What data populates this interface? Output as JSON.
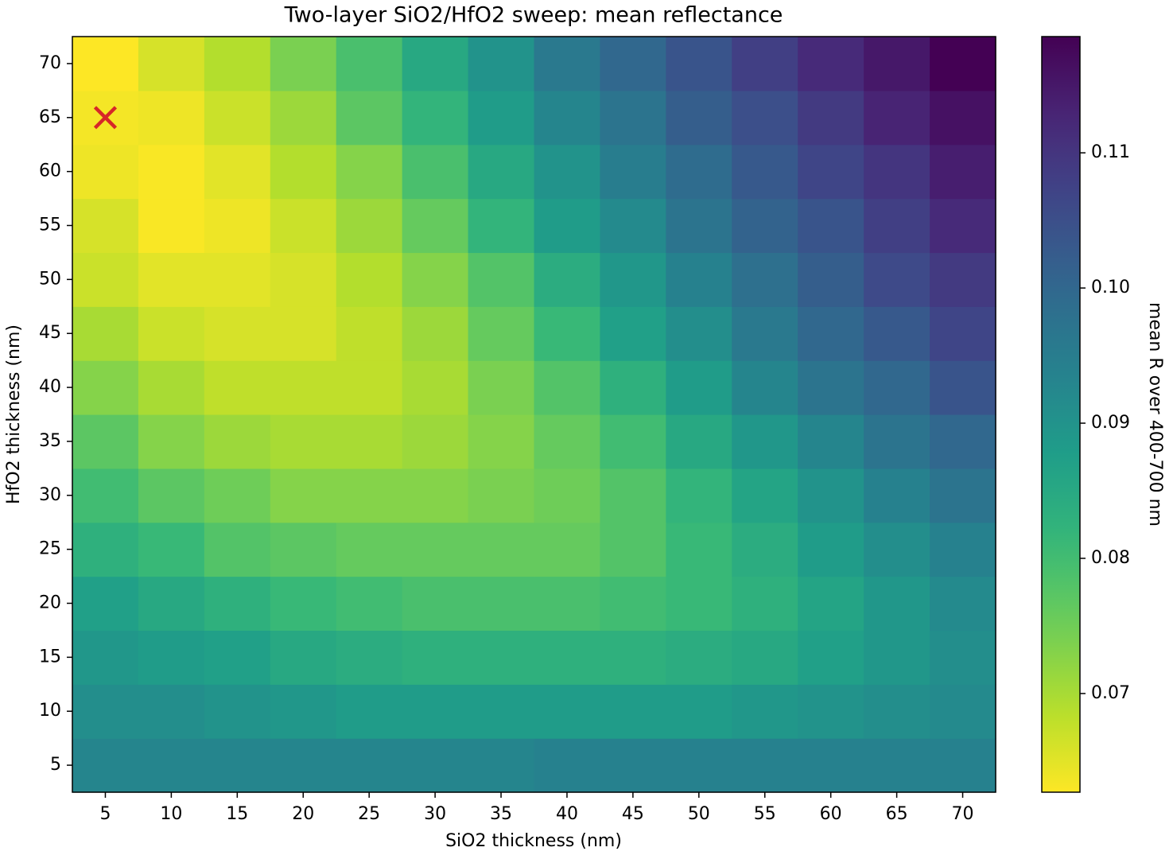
{
  "chart_data": {
    "type": "heatmap",
    "title": "Two-layer SiO2/HfO2 sweep: mean reflectance",
    "x_label": "SiO2 thickness (nm)",
    "y_label": "HfO2 thickness (nm)",
    "x": [
      5,
      10,
      15,
      20,
      25,
      30,
      35,
      40,
      45,
      50,
      55,
      60,
      65,
      70
    ],
    "y": [
      5,
      10,
      15,
      20,
      25,
      30,
      35,
      40,
      45,
      50,
      55,
      60,
      65,
      70
    ],
    "values": [
      [
        0.093,
        0.093,
        0.093,
        0.093,
        0.093,
        0.093,
        0.093,
        0.094,
        0.094,
        0.094,
        0.094,
        0.094,
        0.094,
        0.094
      ],
      [
        0.091,
        0.091,
        0.09,
        0.089,
        0.088,
        0.088,
        0.088,
        0.088,
        0.088,
        0.088,
        0.089,
        0.09,
        0.091,
        0.092
      ],
      [
        0.089,
        0.088,
        0.087,
        0.085,
        0.084,
        0.083,
        0.083,
        0.083,
        0.083,
        0.084,
        0.085,
        0.087,
        0.089,
        0.091
      ],
      [
        0.087,
        0.085,
        0.083,
        0.081,
        0.08,
        0.079,
        0.079,
        0.079,
        0.08,
        0.081,
        0.083,
        0.086,
        0.089,
        0.092
      ],
      [
        0.083,
        0.081,
        0.078,
        0.077,
        0.076,
        0.076,
        0.076,
        0.076,
        0.078,
        0.081,
        0.084,
        0.088,
        0.091,
        0.094
      ],
      [
        0.08,
        0.077,
        0.075,
        0.073,
        0.073,
        0.073,
        0.074,
        0.075,
        0.078,
        0.082,
        0.086,
        0.09,
        0.094,
        0.097
      ],
      [
        0.077,
        0.073,
        0.071,
        0.07,
        0.07,
        0.071,
        0.073,
        0.076,
        0.08,
        0.085,
        0.089,
        0.093,
        0.097,
        0.1
      ],
      [
        0.073,
        0.07,
        0.068,
        0.068,
        0.068,
        0.07,
        0.074,
        0.078,
        0.083,
        0.088,
        0.093,
        0.097,
        0.1,
        0.104
      ],
      [
        0.07,
        0.067,
        0.066,
        0.066,
        0.068,
        0.071,
        0.076,
        0.081,
        0.087,
        0.091,
        0.096,
        0.1,
        0.103,
        0.107
      ],
      [
        0.067,
        0.065,
        0.065,
        0.066,
        0.069,
        0.073,
        0.078,
        0.084,
        0.089,
        0.094,
        0.098,
        0.102,
        0.106,
        0.109
      ],
      [
        0.066,
        0.063,
        0.064,
        0.067,
        0.071,
        0.076,
        0.082,
        0.088,
        0.092,
        0.097,
        0.101,
        0.104,
        0.108,
        0.112
      ],
      [
        0.064,
        0.063,
        0.065,
        0.069,
        0.073,
        0.079,
        0.085,
        0.09,
        0.095,
        0.099,
        0.103,
        0.107,
        0.11,
        0.114
      ],
      [
        0.0635,
        0.064,
        0.067,
        0.071,
        0.077,
        0.082,
        0.088,
        0.093,
        0.097,
        0.102,
        0.105,
        0.109,
        0.113,
        0.116
      ],
      [
        0.0627,
        0.066,
        0.069,
        0.074,
        0.079,
        0.085,
        0.09,
        0.096,
        0.1,
        0.104,
        0.108,
        0.112,
        0.115,
        0.1186
      ]
    ],
    "colormap": "viridis_r",
    "xlim": [
      2.5,
      72.5
    ],
    "ylim": [
      2.5,
      72.5
    ],
    "xticks": [
      5,
      10,
      15,
      20,
      25,
      30,
      35,
      40,
      45,
      50,
      55,
      60,
      65,
      70
    ],
    "yticks": [
      5,
      10,
      15,
      20,
      25,
      30,
      35,
      40,
      45,
      50,
      55,
      60,
      65,
      70
    ],
    "colorbar": {
      "label": "mean R over 400-700 nm",
      "lim": [
        0.0627,
        0.1186
      ],
      "ticks": [
        0.07,
        0.08,
        0.09,
        {
          "value": 0.1,
          "label": "0.10"
        },
        0.11
      ]
    },
    "marker": {
      "x": 5,
      "y": 65,
      "color": "#d62728"
    }
  }
}
